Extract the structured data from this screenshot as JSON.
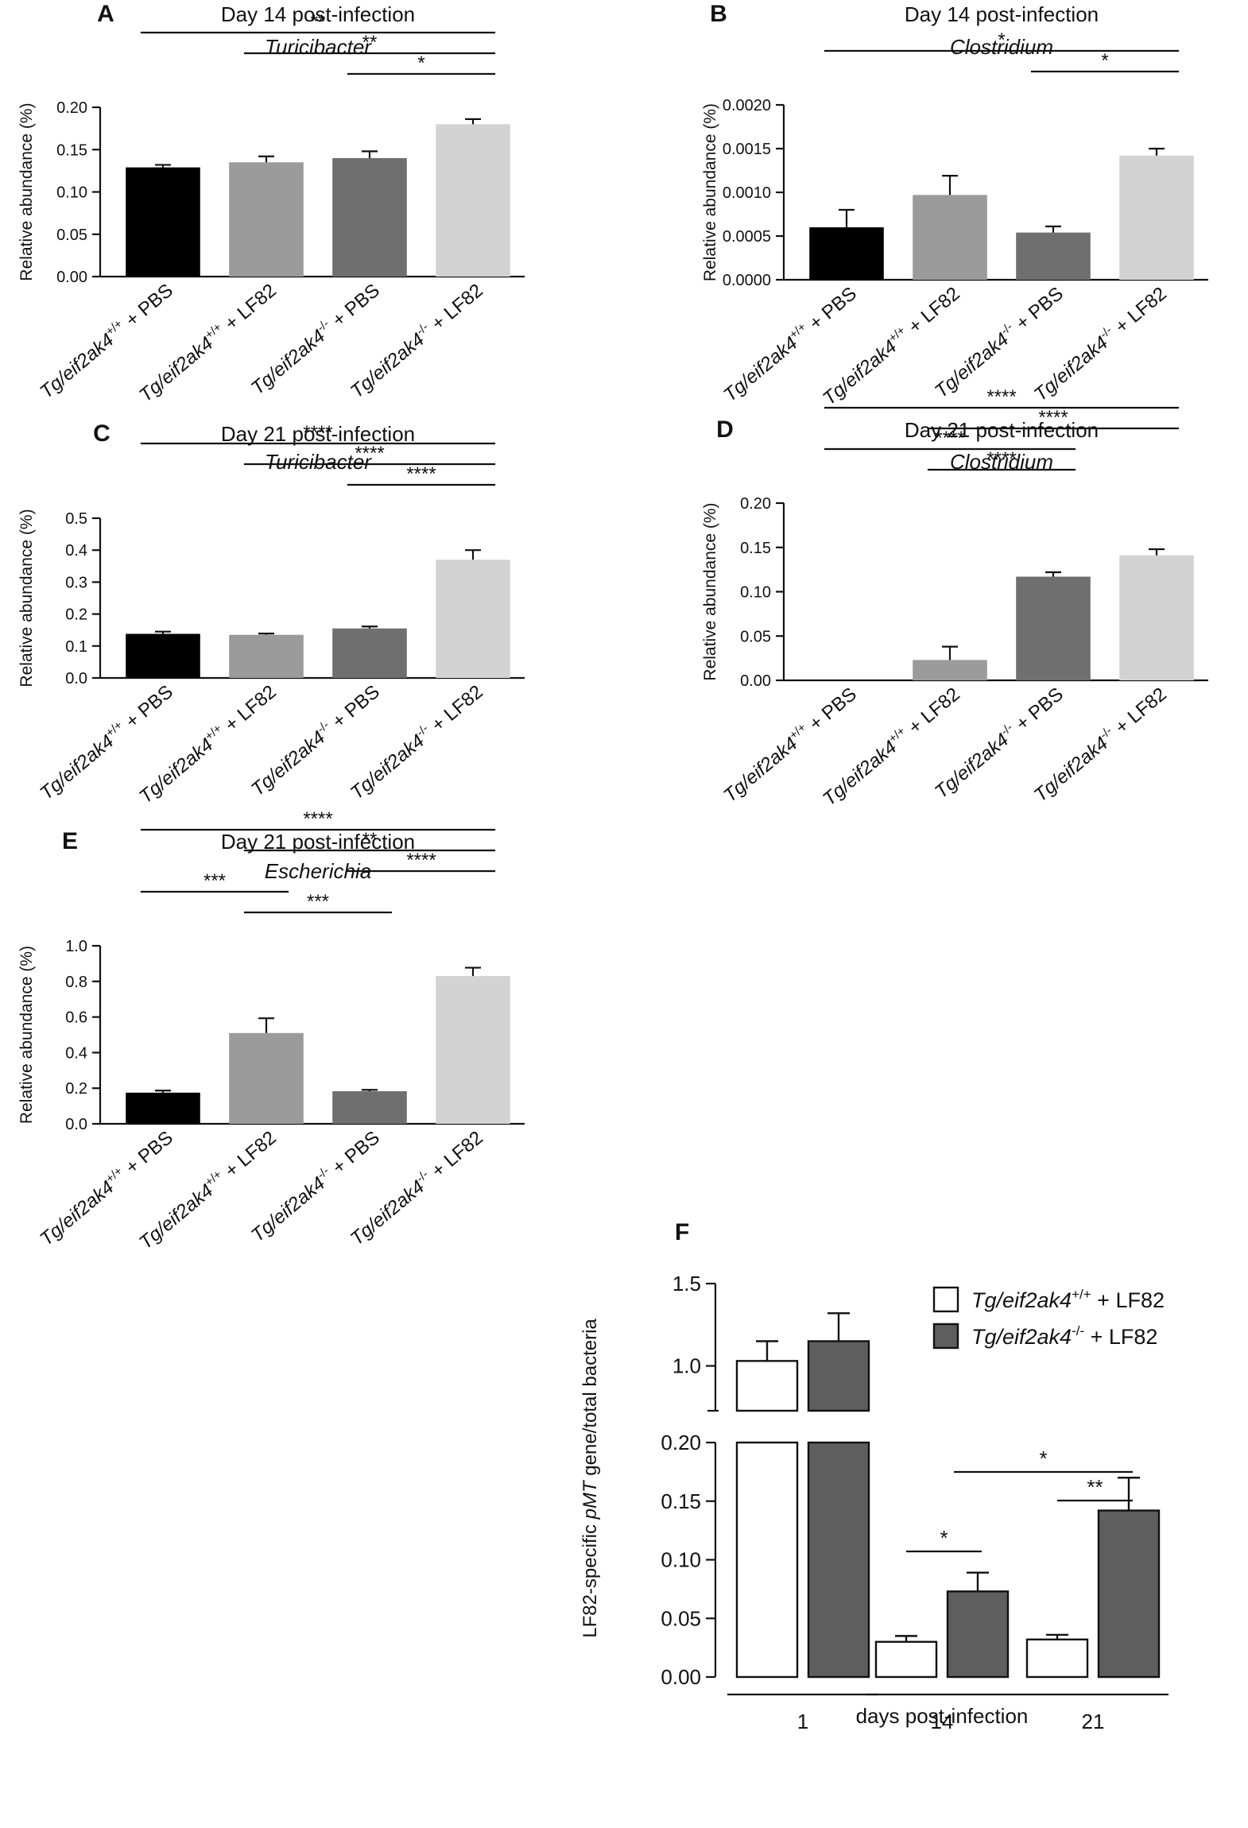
{
  "groups": [
    {
      "prefix": "Tg/eif2ak4",
      "sup": "+/+",
      "suffix": " + PBS"
    },
    {
      "prefix": "Tg/eif2ak4",
      "sup": "+/+",
      "suffix": " + LF82"
    },
    {
      "prefix": "Tg/eif2ak4",
      "sup": "-/-",
      "suffix": " + PBS"
    },
    {
      "prefix": "Tg/eif2ak4",
      "sup": "-/-",
      "suffix": " + LF82"
    }
  ],
  "colors": {
    "wt_pbs": "#000000",
    "wt_lf82": "#9b9b9b",
    "ko_pbs": "#6f6f6f",
    "ko_lf82": "#d3d3d3",
    "f_wt": "#ffffff",
    "f_ko": "#5e5e5e"
  },
  "chart_data": [
    {
      "type": "bar",
      "panel": "A",
      "title": "Day 14 post-infection",
      "subtitle": "Turicibacter",
      "ylabel": "Relative abundance (%)",
      "ylim": [
        0,
        0.2
      ],
      "ticks": [
        "0.00",
        "0.05",
        "0.10",
        "0.15",
        "0.20"
      ],
      "values": [
        0.129,
        0.135,
        0.14,
        0.18
      ],
      "errors": [
        0.003,
        0.007,
        0.008,
        0.006
      ],
      "significance": [
        {
          "from": 0,
          "to": 3,
          "label": "**"
        },
        {
          "from": 1,
          "to": 3,
          "label": "**"
        },
        {
          "from": 2,
          "to": 3,
          "label": "*"
        }
      ]
    },
    {
      "type": "bar",
      "panel": "B",
      "title": "Day 14 post-infection",
      "subtitle": "Clostridium",
      "ylabel": "Relative abundance (%)",
      "ylim": [
        0,
        0.002
      ],
      "ticks": [
        "0.0000",
        "0.0005",
        "0.0010",
        "0.0015",
        "0.0020"
      ],
      "values": [
        0.0006,
        0.00097,
        0.00054,
        0.00142
      ],
      "errors": [
        0.0002,
        0.00022,
        7e-05,
        8e-05
      ],
      "significance": [
        {
          "from": 0,
          "to": 3,
          "label": "*"
        },
        {
          "from": 2,
          "to": 3,
          "label": "*"
        }
      ]
    },
    {
      "type": "bar",
      "panel": "C",
      "title": "Day 21 post-infection",
      "subtitle": "Turicibacter",
      "ylabel": "Relative abundance (%)",
      "ylim": [
        0,
        0.5
      ],
      "ticks": [
        "0.0",
        "0.1",
        "0.2",
        "0.3",
        "0.4",
        "0.5"
      ],
      "values": [
        0.138,
        0.135,
        0.155,
        0.37
      ],
      "errors": [
        0.007,
        0.004,
        0.006,
        0.03
      ],
      "significance": [
        {
          "from": 0,
          "to": 3,
          "label": "****"
        },
        {
          "from": 1,
          "to": 3,
          "label": "****"
        },
        {
          "from": 2,
          "to": 3,
          "label": "****"
        }
      ]
    },
    {
      "type": "bar",
      "panel": "D",
      "title": "Day 21 post-infection",
      "subtitle": "Clostridium",
      "ylabel": "Relative abundance (%)",
      "ylim": [
        0,
        0.2
      ],
      "ticks": [
        "0.00",
        "0.05",
        "0.10",
        "0.15",
        "0.20"
      ],
      "values": [
        0.0,
        0.023,
        0.117,
        0.141
      ],
      "errors": [
        0.0,
        0.015,
        0.005,
        0.007
      ],
      "significance": [
        {
          "from": 0,
          "to": 3,
          "label": "****"
        },
        {
          "from": 1,
          "to": 3,
          "label": "****"
        },
        {
          "from": 0,
          "to": 2,
          "label": "****"
        },
        {
          "from": 1,
          "to": 2,
          "label": "****"
        }
      ]
    },
    {
      "type": "bar",
      "panel": "E",
      "title": "Day 21 post-infection",
      "subtitle": "Escherichia",
      "ylabel": "Relative abundance (%)",
      "ylim": [
        0,
        1.0
      ],
      "ticks": [
        "0.0",
        "0.2",
        "0.4",
        "0.6",
        "0.8",
        "1.0"
      ],
      "values": [
        0.175,
        0.51,
        0.183,
        0.83
      ],
      "errors": [
        0.012,
        0.083,
        0.008,
        0.047
      ],
      "significance": [
        {
          "from": 0,
          "to": 3,
          "label": "****"
        },
        {
          "from": 1,
          "to": 3,
          "label": "**"
        },
        {
          "from": 2,
          "to": 3,
          "label": "****"
        },
        {
          "from": 0,
          "to": 1,
          "label": "***"
        },
        {
          "from": 1,
          "to": 2,
          "label": "***"
        }
      ]
    },
    {
      "type": "bar",
      "panel": "F",
      "ylabel_parts": [
        "LF82-specific ",
        "pMT",
        " gene/total bacteria"
      ],
      "xlabel": "days post-infection",
      "categories": [
        "1",
        "14",
        "21"
      ],
      "axis_break": {
        "lower": [
          0,
          0.2
        ],
        "upper": [
          0.8,
          1.5
        ]
      },
      "lower_ticks": [
        "0.00",
        "0.05",
        "0.10",
        "0.15",
        "0.20"
      ],
      "upper_ticks": [
        "1.0",
        "1.5"
      ],
      "series": [
        {
          "name": "Tg/eif2ak4 +/+ + LF82",
          "legend_prefix": "Tg/eif2ak4",
          "legend_sup": "+/+",
          "legend_suffix": " + LF82",
          "values": [
            1.03,
            0.03,
            0.032
          ],
          "errors": [
            0.12,
            0.005,
            0.004
          ]
        },
        {
          "name": "Tg/eif2ak4 -/- + LF82",
          "legend_prefix": "Tg/eif2ak4",
          "legend_sup": "-/-",
          "legend_suffix": " + LF82",
          "values": [
            1.15,
            0.073,
            0.142
          ],
          "errors": [
            0.17,
            0.016,
            0.028
          ]
        }
      ],
      "significance": [
        {
          "from_cat": 1,
          "from_series": 0,
          "to_cat": 1,
          "to_series": 1,
          "label": "*"
        },
        {
          "from_cat": 1,
          "from_series": 1,
          "to_cat": 2,
          "to_series": 1,
          "label": "*"
        },
        {
          "from_cat": 2,
          "from_series": 0,
          "to_cat": 2,
          "to_series": 1,
          "label": "**"
        }
      ]
    }
  ]
}
